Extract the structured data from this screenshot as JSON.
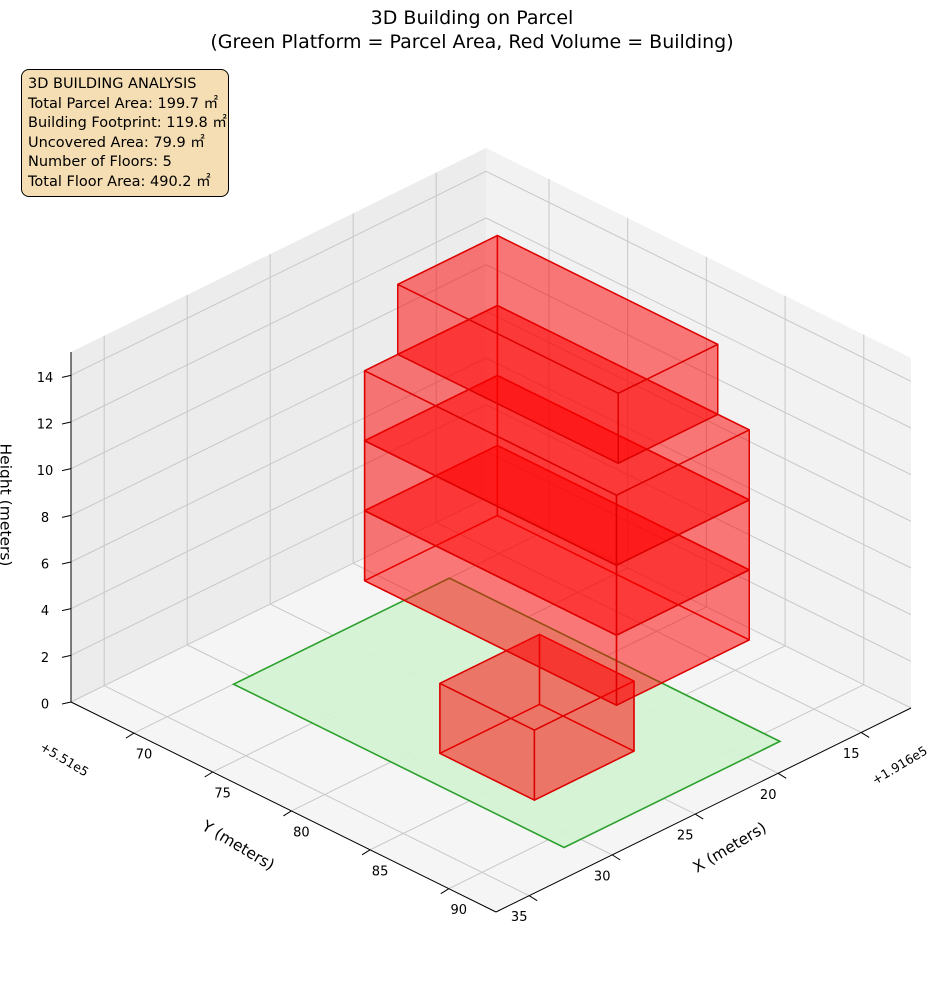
{
  "title": {
    "line1": "3D Building on Parcel",
    "line2": "(Green Platform = Parcel Area, Red Volume = Building)"
  },
  "info_box": {
    "heading": "3D BUILDING ANALYSIS",
    "lines": [
      "Total Parcel Area: 199.7 ㎡",
      "Building Footprint: 119.8 ㎡",
      "Uncovered Area: 79.9 ㎡",
      "Number of Floors: 5",
      "Total Floor Area: 490.2 ㎡"
    ]
  },
  "colors": {
    "parcel_fill": "#d4f2d4",
    "parcel_edge": "#2ca02c",
    "building_fill": "#ff0000",
    "building_edge": "#dd0000",
    "pane": "#f2f2f2",
    "grid": "#c8c8c8",
    "info_bg": "#f5deb3"
  },
  "chart_data": {
    "type": "3d-box",
    "title": "3D Building on Parcel\n(Green Platform = Parcel Area, Red Volume = Building)",
    "xlabel": "X (meters)",
    "ylabel": "Y (meters)",
    "zlabel": "Height (meters)",
    "x_offset": "+1.916e5",
    "y_offset": "+5.51e5",
    "xlim": [
      66,
      93
    ],
    "ylim": [
      12,
      37
    ],
    "zlim": [
      0,
      15
    ],
    "x_ticks": [
      70,
      75,
      80,
      85,
      90
    ],
    "y_ticks": [
      15,
      20,
      25,
      30,
      35
    ],
    "z_ticks": [
      0,
      2,
      4,
      6,
      8,
      10,
      12,
      14
    ],
    "parcel": {
      "x": [
        70,
        91
      ],
      "y": [
        18,
        31
      ],
      "z": 0
    },
    "floors": [
      {
        "floor": 1,
        "x": [
          81,
          87
        ],
        "y": [
          23,
          29
        ],
        "z": [
          0,
          3
        ]
      },
      {
        "floor": 2,
        "x": [
          72,
          88
        ],
        "y": [
          17,
          25
        ],
        "z": [
          3,
          6
        ]
      },
      {
        "floor": 3,
        "x": [
          72,
          88
        ],
        "y": [
          17,
          25
        ],
        "z": [
          6,
          9
        ]
      },
      {
        "floor": 4,
        "x": [
          72,
          88
        ],
        "y": [
          17,
          25
        ],
        "z": [
          9,
          12
        ]
      },
      {
        "floor": 5,
        "x": [
          72,
          86
        ],
        "y": [
          17,
          23
        ],
        "z": [
          12,
          15
        ]
      }
    ],
    "grid": true
  }
}
